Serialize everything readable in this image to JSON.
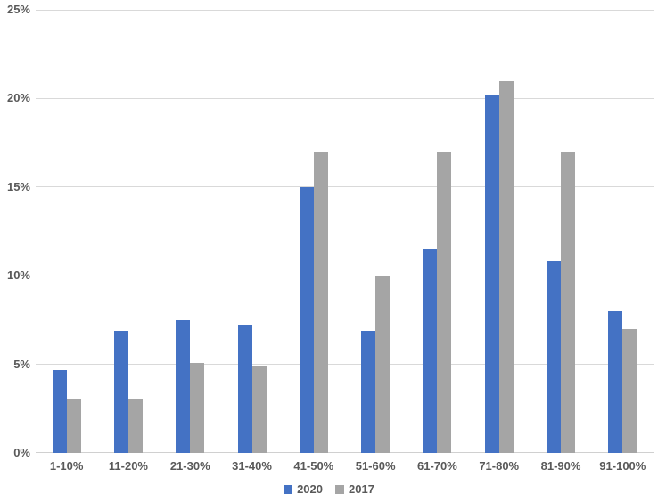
{
  "chart_data": {
    "type": "bar",
    "title": "",
    "xlabel": "",
    "ylabel": "",
    "categories": [
      "1-10%",
      "11-20%",
      "21-30%",
      "31-40%",
      "41-50%",
      "51-60%",
      "61-70%",
      "71-80%",
      "81-90%",
      "91-100%"
    ],
    "series": [
      {
        "name": "2020",
        "color": "#4472C4",
        "values": [
          4.7,
          6.9,
          7.5,
          7.2,
          15,
          6.9,
          11.5,
          20.2,
          10.8,
          8
        ]
      },
      {
        "name": "2017",
        "color": "#A5A5A5",
        "values": [
          3,
          3,
          5.1,
          4.9,
          17,
          10,
          17,
          21,
          17,
          7
        ]
      }
    ],
    "ylim": [
      0,
      25
    ],
    "yticks": [
      {
        "value": 0,
        "label": "0%"
      },
      {
        "value": 5,
        "label": "5%"
      },
      {
        "value": 10,
        "label": "10%"
      },
      {
        "value": 15,
        "label": "15%"
      },
      {
        "value": 20,
        "label": "20%"
      },
      {
        "value": 25,
        "label": "25%"
      }
    ],
    "grid": true,
    "legend_position": "bottom"
  },
  "colors": {
    "series_2020": "#4472C4",
    "series_2017": "#A5A5A5",
    "gridline": "#d9d9d9",
    "axis_line": "#d0d0d0",
    "label_text": "#595959",
    "background": "#ffffff"
  }
}
